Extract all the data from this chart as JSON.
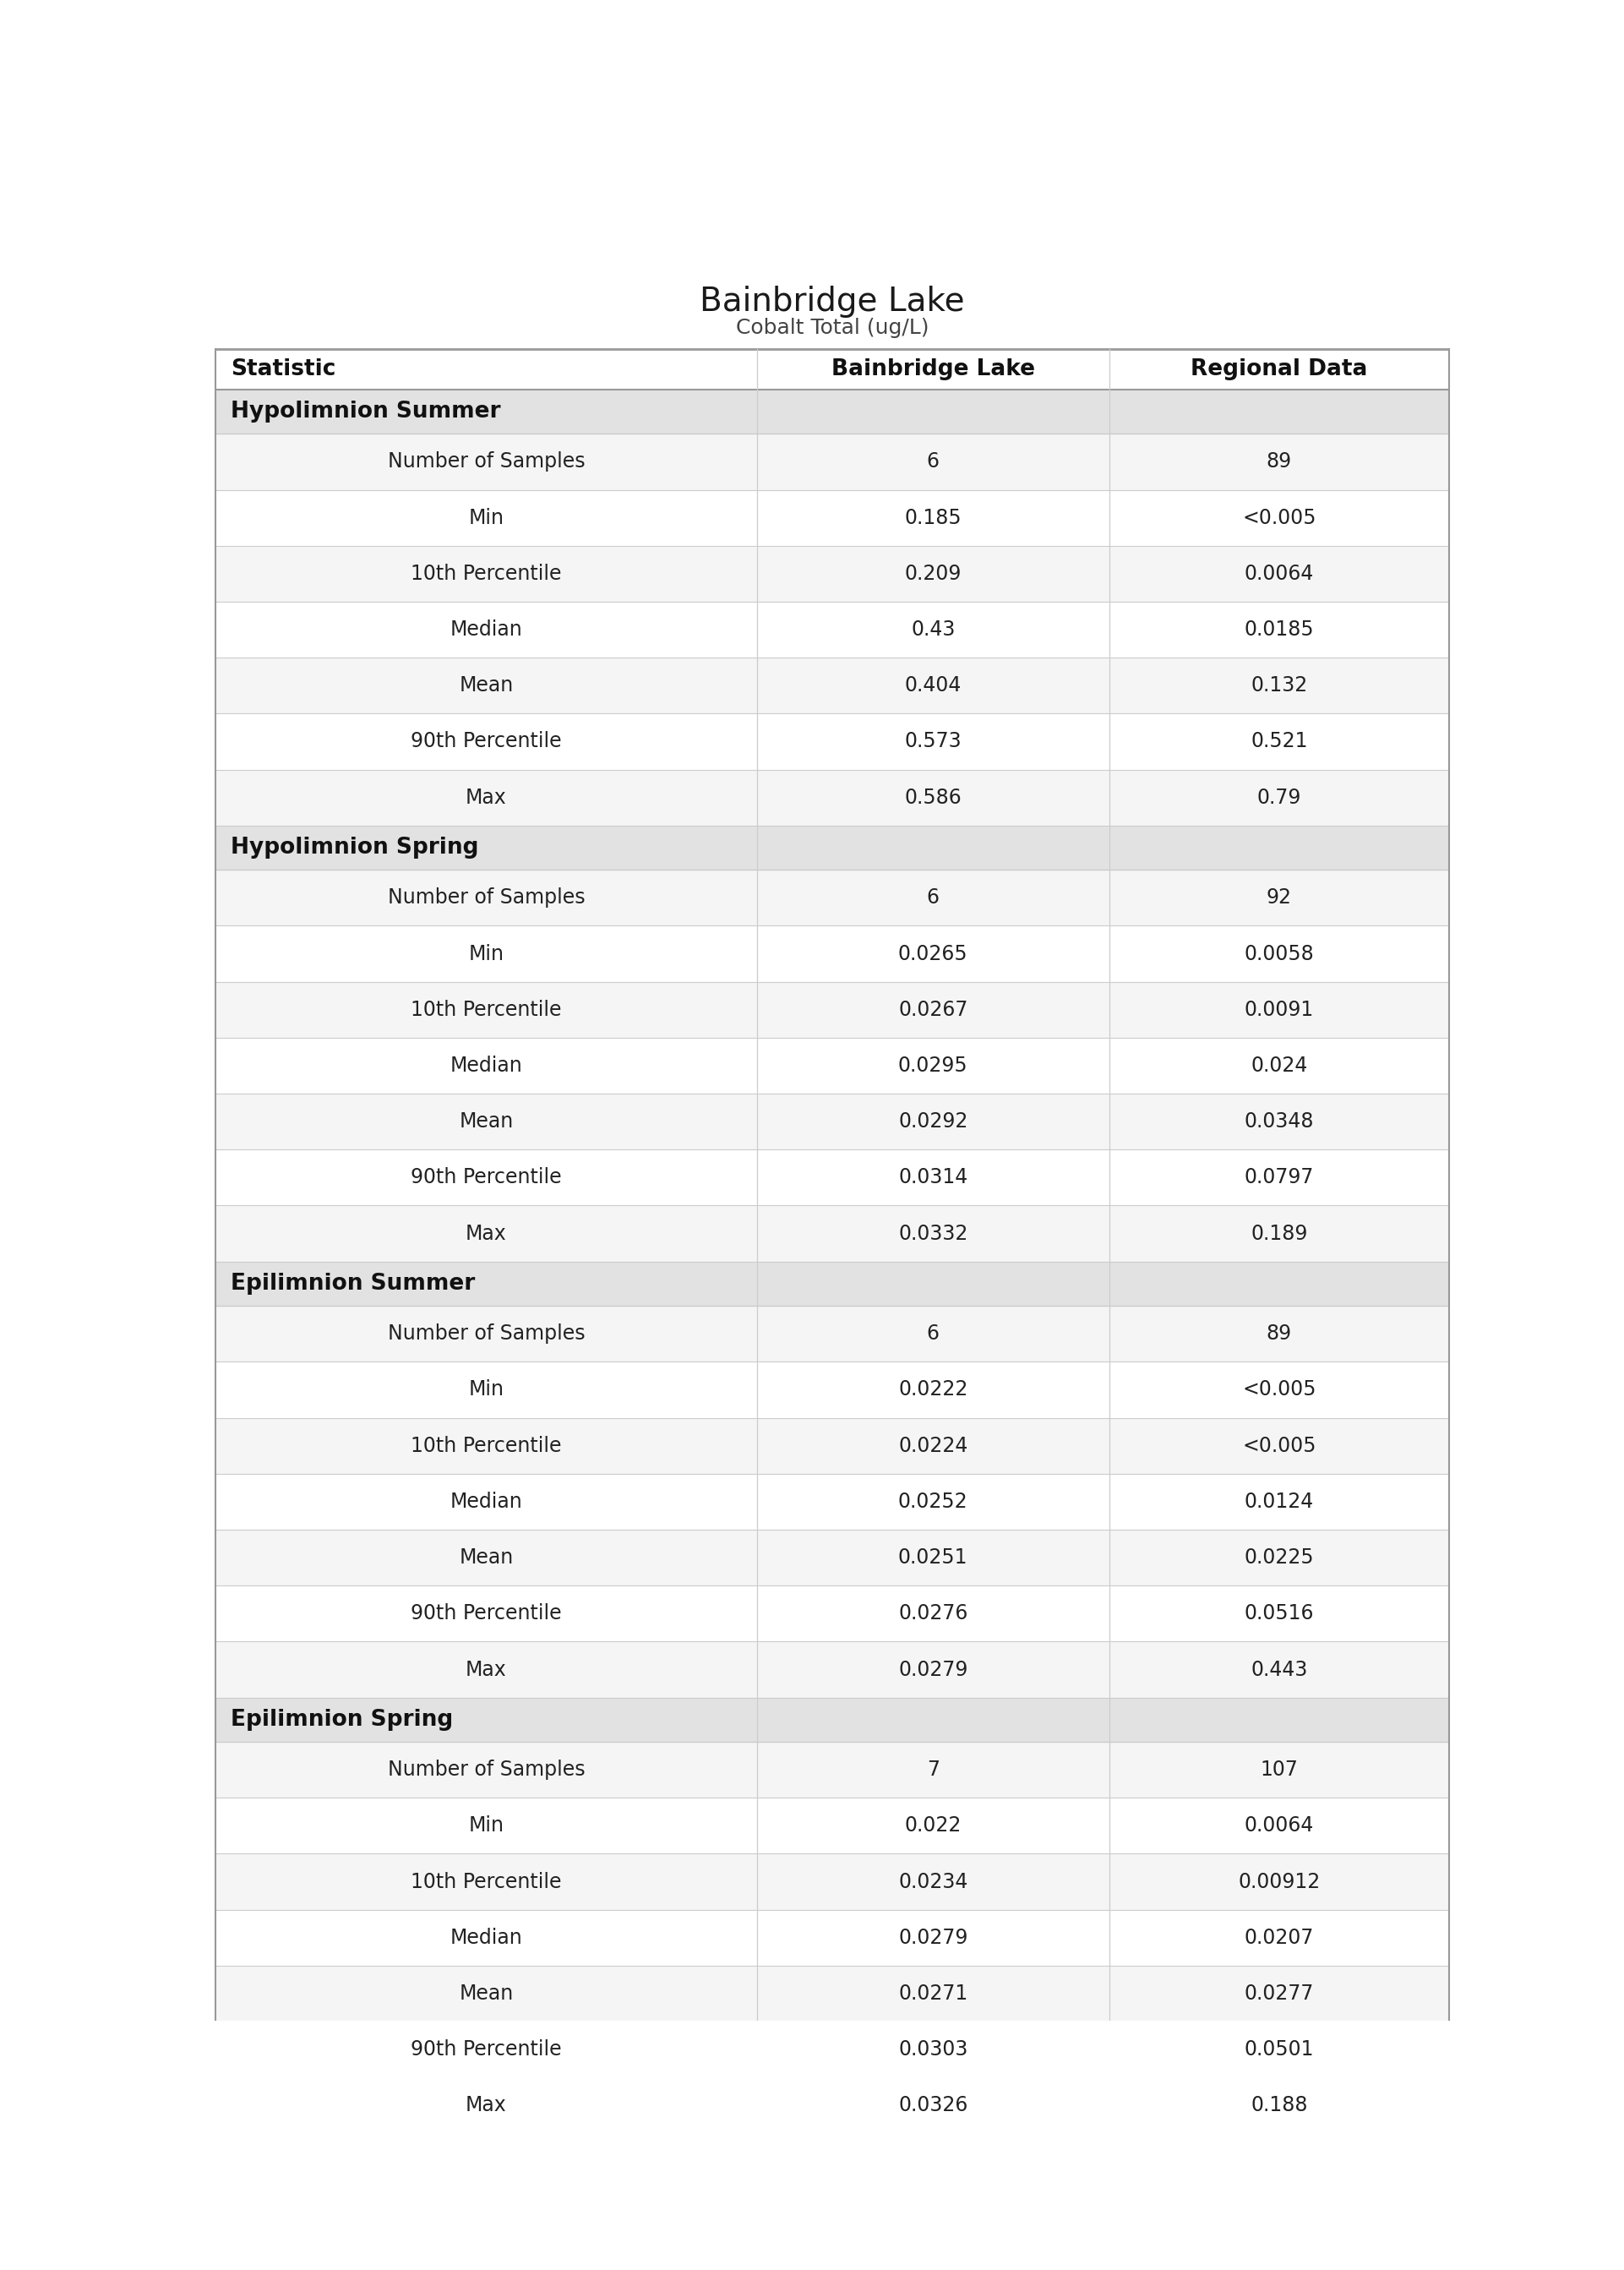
{
  "title": "Bainbridge Lake",
  "subtitle": "Cobalt Total (ug/L)",
  "col_headers": [
    "Statistic",
    "Bainbridge Lake",
    "Regional Data"
  ],
  "sections": [
    {
      "section_label": "Hypolimnion Summer",
      "rows": [
        [
          "Number of Samples",
          "6",
          "89"
        ],
        [
          "Min",
          "0.185",
          "<0.005"
        ],
        [
          "10th Percentile",
          "0.209",
          "0.0064"
        ],
        [
          "Median",
          "0.43",
          "0.0185"
        ],
        [
          "Mean",
          "0.404",
          "0.132"
        ],
        [
          "90th Percentile",
          "0.573",
          "0.521"
        ],
        [
          "Max",
          "0.586",
          "0.79"
        ]
      ]
    },
    {
      "section_label": "Hypolimnion Spring",
      "rows": [
        [
          "Number of Samples",
          "6",
          "92"
        ],
        [
          "Min",
          "0.0265",
          "0.0058"
        ],
        [
          "10th Percentile",
          "0.0267",
          "0.0091"
        ],
        [
          "Median",
          "0.0295",
          "0.024"
        ],
        [
          "Mean",
          "0.0292",
          "0.0348"
        ],
        [
          "90th Percentile",
          "0.0314",
          "0.0797"
        ],
        [
          "Max",
          "0.0332",
          "0.189"
        ]
      ]
    },
    {
      "section_label": "Epilimnion Summer",
      "rows": [
        [
          "Number of Samples",
          "6",
          "89"
        ],
        [
          "Min",
          "0.0222",
          "<0.005"
        ],
        [
          "10th Percentile",
          "0.0224",
          "<0.005"
        ],
        [
          "Median",
          "0.0252",
          "0.0124"
        ],
        [
          "Mean",
          "0.0251",
          "0.0225"
        ],
        [
          "90th Percentile",
          "0.0276",
          "0.0516"
        ],
        [
          "Max",
          "0.0279",
          "0.443"
        ]
      ]
    },
    {
      "section_label": "Epilimnion Spring",
      "rows": [
        [
          "Number of Samples",
          "7",
          "107"
        ],
        [
          "Min",
          "0.022",
          "0.0064"
        ],
        [
          "10th Percentile",
          "0.0234",
          "0.00912"
        ],
        [
          "Median",
          "0.0279",
          "0.0207"
        ],
        [
          "Mean",
          "0.0271",
          "0.0277"
        ],
        [
          "90th Percentile",
          "0.0303",
          "0.0501"
        ],
        [
          "Max",
          "0.0326",
          "0.188"
        ]
      ]
    }
  ],
  "bg_color": "#ffffff",
  "header_bg": "#ffffff",
  "section_bg": "#e2e2e2",
  "row_odd_bg": "#f5f5f5",
  "row_even_bg": "#ffffff",
  "border_color": "#cccccc",
  "top_border_color": "#999999",
  "title_fontsize": 28,
  "subtitle_fontsize": 18,
  "header_fontsize": 19,
  "section_fontsize": 19,
  "data_fontsize": 17,
  "col_split1": 0.44,
  "col_split2": 0.72
}
